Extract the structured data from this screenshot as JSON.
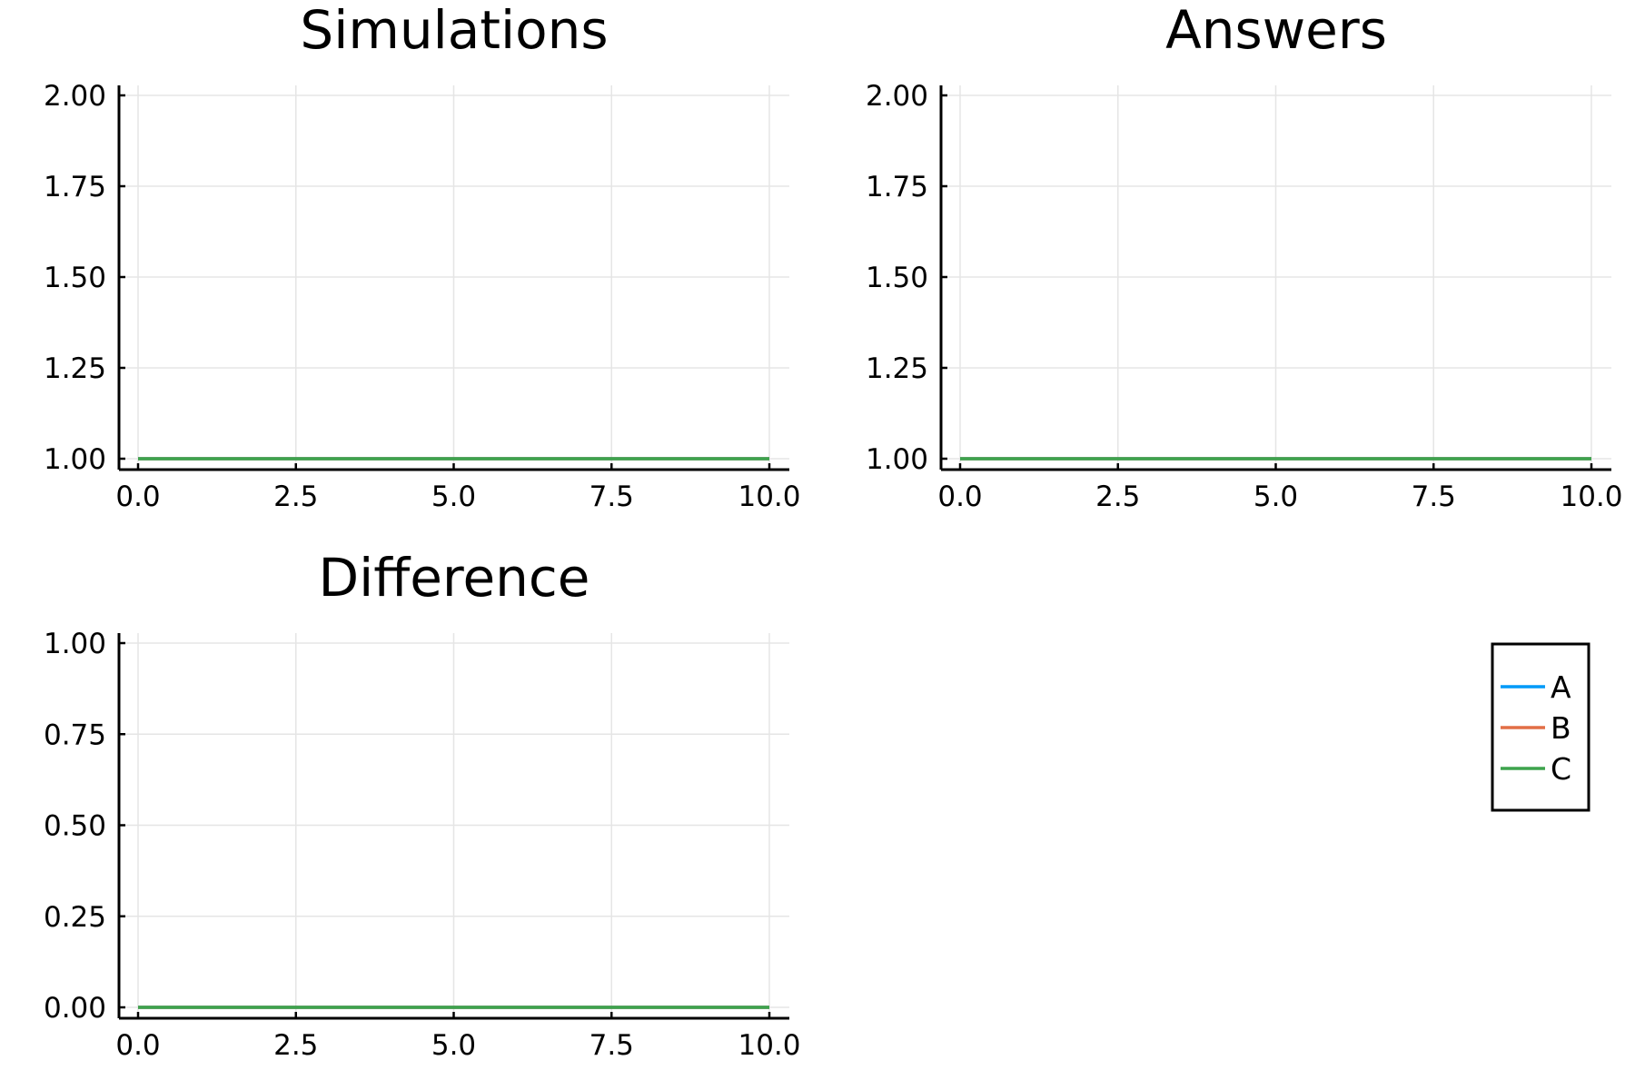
{
  "chart_data": [
    {
      "type": "line",
      "title": "Simulations",
      "xlabel": "",
      "ylabel": "",
      "xlim": [
        0,
        10
      ],
      "ylim": [
        1,
        2
      ],
      "xticks": [
        0,
        2.5,
        5,
        7.5,
        10
      ],
      "xtick_labels": [
        "0.0",
        "2.5",
        "5.0",
        "7.5",
        "10.0"
      ],
      "yticks": [
        1,
        1.25,
        1.5,
        1.75,
        2
      ],
      "ytick_labels": [
        "1.00",
        "1.25",
        "1.50",
        "1.75",
        "2.00"
      ],
      "grid": true,
      "series": [
        {
          "name": "A",
          "x": [
            0,
            10
          ],
          "y": [
            1,
            1
          ],
          "color": "#009af9"
        },
        {
          "name": "B",
          "x": [
            0,
            10
          ],
          "y": [
            1,
            1
          ],
          "color": "#e26f46"
        },
        {
          "name": "C",
          "x": [
            0,
            10
          ],
          "y": [
            1,
            1
          ],
          "color": "#3da44d"
        }
      ]
    },
    {
      "type": "line",
      "title": "Answers",
      "xlabel": "",
      "ylabel": "",
      "xlim": [
        0,
        10
      ],
      "ylim": [
        1,
        2
      ],
      "xticks": [
        0,
        2.5,
        5,
        7.5,
        10
      ],
      "xtick_labels": [
        "0.0",
        "2.5",
        "5.0",
        "7.5",
        "10.0"
      ],
      "yticks": [
        1,
        1.25,
        1.5,
        1.75,
        2
      ],
      "ytick_labels": [
        "1.00",
        "1.25",
        "1.50",
        "1.75",
        "2.00"
      ],
      "grid": true,
      "series": [
        {
          "name": "A",
          "x": [
            0,
            10
          ],
          "y": [
            1,
            1
          ],
          "color": "#009af9"
        },
        {
          "name": "B",
          "x": [
            0,
            10
          ],
          "y": [
            1,
            1
          ],
          "color": "#e26f46"
        },
        {
          "name": "C",
          "x": [
            0,
            10
          ],
          "y": [
            1,
            1
          ],
          "color": "#3da44d"
        }
      ]
    },
    {
      "type": "line",
      "title": "Difference",
      "xlabel": "",
      "ylabel": "",
      "xlim": [
        0,
        10
      ],
      "ylim": [
        0,
        1
      ],
      "xticks": [
        0,
        2.5,
        5,
        7.5,
        10
      ],
      "xtick_labels": [
        "0.0",
        "2.5",
        "5.0",
        "7.5",
        "10.0"
      ],
      "yticks": [
        0,
        0.25,
        0.5,
        0.75,
        1
      ],
      "ytick_labels": [
        "0.00",
        "0.25",
        "0.50",
        "0.75",
        "1.00"
      ],
      "grid": true,
      "series": [
        {
          "name": "A",
          "x": [
            0,
            10
          ],
          "y": [
            0,
            0
          ],
          "color": "#009af9"
        },
        {
          "name": "B",
          "x": [
            0,
            10
          ],
          "y": [
            0,
            0
          ],
          "color": "#e26f46"
        },
        {
          "name": "C",
          "x": [
            0,
            10
          ],
          "y": [
            0,
            0
          ],
          "color": "#3da44d"
        }
      ]
    }
  ],
  "legend": {
    "placement": "right",
    "entries": [
      {
        "label": "A",
        "color": "#009af9"
      },
      {
        "label": "B",
        "color": "#e26f46"
      },
      {
        "label": "C",
        "color": "#3da44d"
      }
    ]
  }
}
